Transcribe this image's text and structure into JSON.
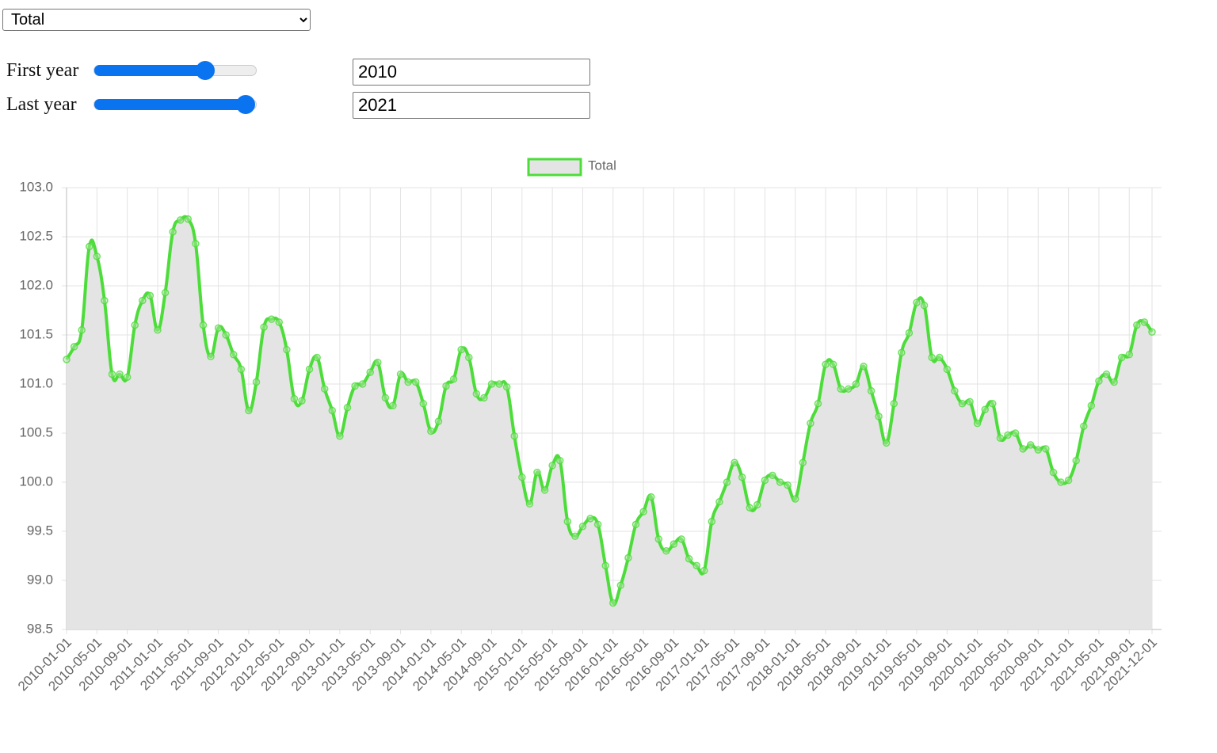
{
  "controls": {
    "select": "Total",
    "first_year": {
      "label": "First year",
      "value": 2010
    },
    "last_year": {
      "label": "Last year",
      "value": 2021
    }
  },
  "chart_data": {
    "type": "line",
    "categories": [
      "2010-01-01",
      null,
      null,
      null,
      "2010-05-01",
      null,
      null,
      null,
      "2010-09-01",
      null,
      null,
      null,
      "2011-01-01",
      null,
      null,
      null,
      "2011-05-01",
      null,
      null,
      null,
      "2011-09-01",
      null,
      null,
      null,
      "2012-01-01",
      null,
      null,
      null,
      "2012-05-01",
      null,
      null,
      null,
      "2012-09-01",
      null,
      null,
      null,
      "2013-01-01",
      null,
      null,
      null,
      "2013-05-01",
      null,
      null,
      null,
      "2013-09-01",
      null,
      null,
      null,
      "2014-01-01",
      null,
      null,
      null,
      "2014-05-01",
      null,
      null,
      null,
      "2014-09-01",
      null,
      null,
      null,
      "2015-01-01",
      null,
      null,
      null,
      "2015-05-01",
      null,
      null,
      null,
      "2015-09-01",
      null,
      null,
      null,
      "2016-01-01",
      null,
      null,
      null,
      "2016-05-01",
      null,
      null,
      null,
      "2016-09-01",
      null,
      null,
      null,
      "2017-01-01",
      null,
      null,
      null,
      "2017-05-01",
      null,
      null,
      null,
      "2017-09-01",
      null,
      null,
      null,
      "2018-01-01",
      null,
      null,
      null,
      "2018-05-01",
      null,
      null,
      null,
      "2018-09-01",
      null,
      null,
      null,
      "2019-01-01",
      null,
      null,
      null,
      "2019-05-01",
      null,
      null,
      null,
      "2019-09-01",
      null,
      null,
      null,
      "2020-01-01",
      null,
      null,
      null,
      "2020-05-01",
      null,
      null,
      null,
      "2020-09-01",
      null,
      null,
      null,
      "2021-01-01",
      null,
      null,
      null,
      "2021-05-01",
      null,
      null,
      null,
      "2021-09-01",
      null,
      null,
      "2021-12-01"
    ],
    "series": [
      {
        "name": "Total",
        "color": "#4ddd3a",
        "fill": "#e4e4e4",
        "values": [
          101.25,
          101.38,
          101.55,
          102.4,
          102.3,
          101.85,
          101.1,
          101.1,
          101.07,
          101.6,
          101.85,
          101.9,
          101.55,
          101.93,
          102.55,
          102.67,
          102.68,
          102.43,
          101.6,
          101.28,
          101.57,
          101.5,
          101.3,
          101.15,
          100.73,
          101.02,
          101.58,
          101.66,
          101.63,
          101.35,
          100.85,
          100.83,
          101.15,
          101.27,
          100.95,
          100.73,
          100.47,
          100.76,
          100.98,
          101.0,
          101.12,
          101.22,
          100.86,
          100.78,
          101.1,
          101.02,
          101.02,
          100.8,
          100.52,
          100.62,
          100.98,
          101.05,
          101.35,
          101.27,
          100.9,
          100.86,
          101.0,
          101.0,
          100.97,
          100.47,
          100.05,
          99.78,
          100.1,
          99.92,
          100.17,
          100.22,
          99.6,
          99.45,
          99.55,
          99.63,
          99.57,
          99.15,
          98.77,
          98.95,
          99.23,
          99.57,
          99.7,
          99.85,
          99.42,
          99.3,
          99.37,
          99.42,
          99.22,
          99.15,
          99.1,
          99.6,
          99.8,
          100.0,
          100.2,
          100.05,
          99.74,
          99.77,
          100.02,
          100.07,
          100.0,
          99.97,
          99.83,
          100.2,
          100.6,
          100.8,
          101.2,
          101.2,
          100.95,
          100.95,
          101.0,
          101.18,
          100.93,
          100.67,
          100.4,
          100.8,
          101.32,
          101.52,
          101.83,
          101.8,
          101.27,
          101.27,
          101.15,
          100.93,
          100.8,
          100.82,
          100.6,
          100.74,
          100.8,
          100.45,
          100.48,
          100.5,
          100.34,
          100.38,
          100.33,
          100.34,
          100.1,
          100.0,
          100.02,
          100.22,
          100.57,
          100.78,
          101.03,
          101.1,
          101.02,
          101.27,
          101.3,
          101.6,
          101.63,
          101.53
        ]
      }
    ],
    "ylim": [
      98.5,
      103
    ],
    "yticks": [
      98.5,
      {
        "value": 99,
        "label": "99.0"
      },
      99.5,
      {
        "value": 100,
        "label": "100.0"
      },
      100.5,
      {
        "value": 101,
        "label": "101.0"
      },
      101.5,
      {
        "value": 102,
        "label": "102.0"
      },
      102.5,
      {
        "value": 103,
        "label": "103.0"
      }
    ],
    "grid": true,
    "legend": "top"
  }
}
